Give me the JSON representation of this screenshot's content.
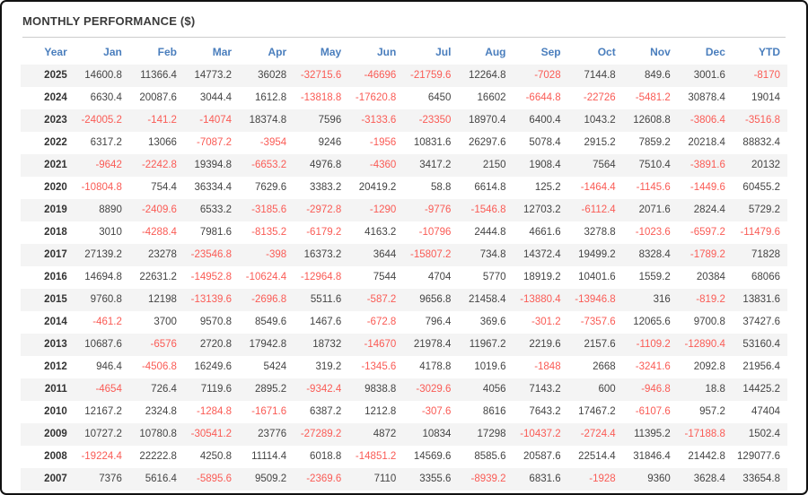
{
  "colors": {
    "header_text": "#4a7ebd",
    "positive_value": "#444444",
    "negative_value": "#fa5b55",
    "year_text": "#333333",
    "alt_row_bg": "#f4f4f4",
    "outer_border": "#111111",
    "title_separator": "#cccccc"
  },
  "chart_data": {
    "type": "table",
    "title": "MONTHLY PERFORMANCE ($)",
    "columns": [
      "Year",
      "Jan",
      "Feb",
      "Mar",
      "Apr",
      "May",
      "Jun",
      "Jul",
      "Aug",
      "Sep",
      "Oct",
      "Nov",
      "Dec",
      "YTD"
    ],
    "rows": [
      {
        "year": "2025",
        "values": [
          "14600.8",
          "11366.4",
          "14773.2",
          "36028",
          "-32715.6",
          "-46696",
          "-21759.6",
          "12264.8",
          "-7028",
          "7144.8",
          "849.6",
          "3001.6",
          "-8170"
        ]
      },
      {
        "year": "2024",
        "values": [
          "6630.4",
          "20087.6",
          "3044.4",
          "1612.8",
          "-13818.8",
          "-17620.8",
          "6450",
          "16602",
          "-6644.8",
          "-22726",
          "-5481.2",
          "30878.4",
          "19014"
        ]
      },
      {
        "year": "2023",
        "values": [
          "-24005.2",
          "-141.2",
          "-14074",
          "18374.8",
          "7596",
          "-3133.6",
          "-23350",
          "18970.4",
          "6400.4",
          "1043.2",
          "12608.8",
          "-3806.4",
          "-3516.8"
        ]
      },
      {
        "year": "2022",
        "values": [
          "6317.2",
          "13066",
          "-7087.2",
          "-3954",
          "9246",
          "-1956",
          "10831.6",
          "26297.6",
          "5078.4",
          "2915.2",
          "7859.2",
          "20218.4",
          "88832.4"
        ]
      },
      {
        "year": "2021",
        "values": [
          "-9642",
          "-2242.8",
          "19394.8",
          "-6653.2",
          "4976.8",
          "-4360",
          "3417.2",
          "2150",
          "1908.4",
          "7564",
          "7510.4",
          "-3891.6",
          "20132"
        ]
      },
      {
        "year": "2020",
        "values": [
          "-10804.8",
          "754.4",
          "36334.4",
          "7629.6",
          "3383.2",
          "20419.2",
          "58.8",
          "6614.8",
          "125.2",
          "-1464.4",
          "-1145.6",
          "-1449.6",
          "60455.2"
        ]
      },
      {
        "year": "2019",
        "values": [
          "8890",
          "-2409.6",
          "6533.2",
          "-3185.6",
          "-2972.8",
          "-1290",
          "-9776",
          "-1546.8",
          "12703.2",
          "-6112.4",
          "2071.6",
          "2824.4",
          "5729.2"
        ]
      },
      {
        "year": "2018",
        "values": [
          "3010",
          "-4288.4",
          "7981.6",
          "-8135.2",
          "-6179.2",
          "4163.2",
          "-10796",
          "2444.8",
          "4661.6",
          "3278.8",
          "-1023.6",
          "-6597.2",
          "-11479.6"
        ]
      },
      {
        "year": "2017",
        "values": [
          "27139.2",
          "23278",
          "-23546.8",
          "-398",
          "16373.2",
          "3644",
          "-15807.2",
          "734.8",
          "14372.4",
          "19499.2",
          "8328.4",
          "-1789.2",
          "71828"
        ]
      },
      {
        "year": "2016",
        "values": [
          "14694.8",
          "22631.2",
          "-14952.8",
          "-10624.4",
          "-12964.8",
          "7544",
          "4704",
          "5770",
          "18919.2",
          "10401.6",
          "1559.2",
          "20384",
          "68066"
        ]
      },
      {
        "year": "2015",
        "values": [
          "9760.8",
          "12198",
          "-13139.6",
          "-2696.8",
          "5511.6",
          "-587.2",
          "9656.8",
          "21458.4",
          "-13880.4",
          "-13946.8",
          "316",
          "-819.2",
          "13831.6"
        ]
      },
      {
        "year": "2014",
        "values": [
          "-461.2",
          "3700",
          "9570.8",
          "8549.6",
          "1467.6",
          "-672.8",
          "796.4",
          "369.6",
          "-301.2",
          "-7357.6",
          "12065.6",
          "9700.8",
          "37427.6"
        ]
      },
      {
        "year": "2013",
        "values": [
          "10687.6",
          "-6576",
          "2720.8",
          "17942.8",
          "18732",
          "-14670",
          "21978.4",
          "11967.2",
          "2219.6",
          "2157.6",
          "-1109.2",
          "-12890.4",
          "53160.4"
        ]
      },
      {
        "year": "2012",
        "values": [
          "946.4",
          "-4506.8",
          "16249.6",
          "5424",
          "319.2",
          "-1345.6",
          "4178.8",
          "1019.6",
          "-1848",
          "2668",
          "-3241.6",
          "2092.8",
          "21956.4"
        ]
      },
      {
        "year": "2011",
        "values": [
          "-4654",
          "726.4",
          "7119.6",
          "2895.2",
          "-9342.4",
          "9838.8",
          "-3029.6",
          "4056",
          "7143.2",
          "600",
          "-946.8",
          "18.8",
          "14425.2"
        ]
      },
      {
        "year": "2010",
        "values": [
          "12167.2",
          "2324.8",
          "-1284.8",
          "-1671.6",
          "6387.2",
          "1212.8",
          "-307.6",
          "8616",
          "7643.2",
          "17467.2",
          "-6107.6",
          "957.2",
          "47404"
        ]
      },
      {
        "year": "2009",
        "values": [
          "10727.2",
          "10780.8",
          "-30541.2",
          "23776",
          "-27289.2",
          "4872",
          "10834",
          "17298",
          "-10437.2",
          "-2724.4",
          "11395.2",
          "-17188.8",
          "1502.4"
        ]
      },
      {
        "year": "2008",
        "values": [
          "-19224.4",
          "22222.8",
          "4250.8",
          "11114.4",
          "6018.8",
          "-14851.2",
          "14569.6",
          "8585.6",
          "20587.6",
          "22514.4",
          "31846.4",
          "21442.8",
          "129077.6"
        ]
      },
      {
        "year": "2007",
        "values": [
          "7376",
          "5616.4",
          "-5895.6",
          "9509.2",
          "-2369.6",
          "7110",
          "3355.6",
          "-8939.2",
          "6831.6",
          "-1928",
          "9360",
          "3628.4",
          "33654.8"
        ]
      }
    ]
  }
}
